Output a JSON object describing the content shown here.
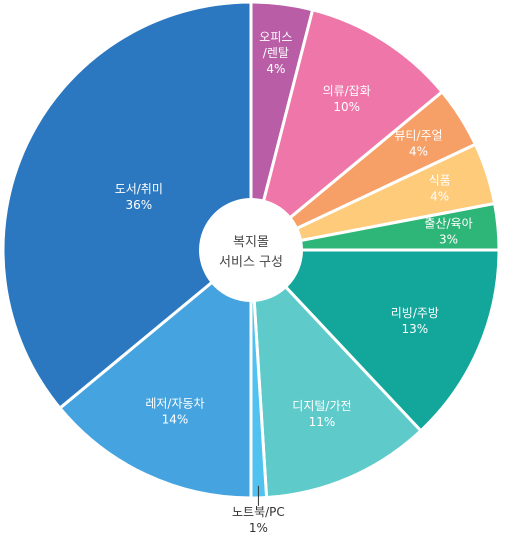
{
  "chart_data": {
    "type": "pie",
    "center_label": [
      "복지몰",
      "서비스 구성"
    ],
    "slices": [
      {
        "label": [
          "오피스",
          "/렌탈"
        ],
        "value_text": "4%",
        "value": 4,
        "color": "#b95ea6"
      },
      {
        "label": [
          "의류/잡화"
        ],
        "value_text": "10%",
        "value": 10,
        "color": "#ef76a9"
      },
      {
        "label": [
          "뷰티/주얼"
        ],
        "value_text": "4%",
        "value": 4,
        "color": "#f6a068"
      },
      {
        "label": [
          "식품"
        ],
        "value_text": "4%",
        "value": 4,
        "color": "#fecb7b"
      },
      {
        "label": [
          "출산/육아"
        ],
        "value_text": "3%",
        "value": 3,
        "color": "#2eb678"
      },
      {
        "label": [
          "리빙/주방"
        ],
        "value_text": "13%",
        "value": 13,
        "color": "#13a69b"
      },
      {
        "label": [
          "디지털/가전"
        ],
        "value_text": "11%",
        "value": 11,
        "color": "#5ecaca"
      },
      {
        "label": [
          "노트북/PC"
        ],
        "value_text": "1%",
        "value": 1,
        "color": "#4fc2ef"
      },
      {
        "label": [
          "레저/자동차"
        ],
        "value_text": "14%",
        "value": 14,
        "color": "#45a4df"
      },
      {
        "label": [
          "도서/취미"
        ],
        "value_text": "36%",
        "value": 36,
        "color": "#2b78c0"
      }
    ]
  }
}
